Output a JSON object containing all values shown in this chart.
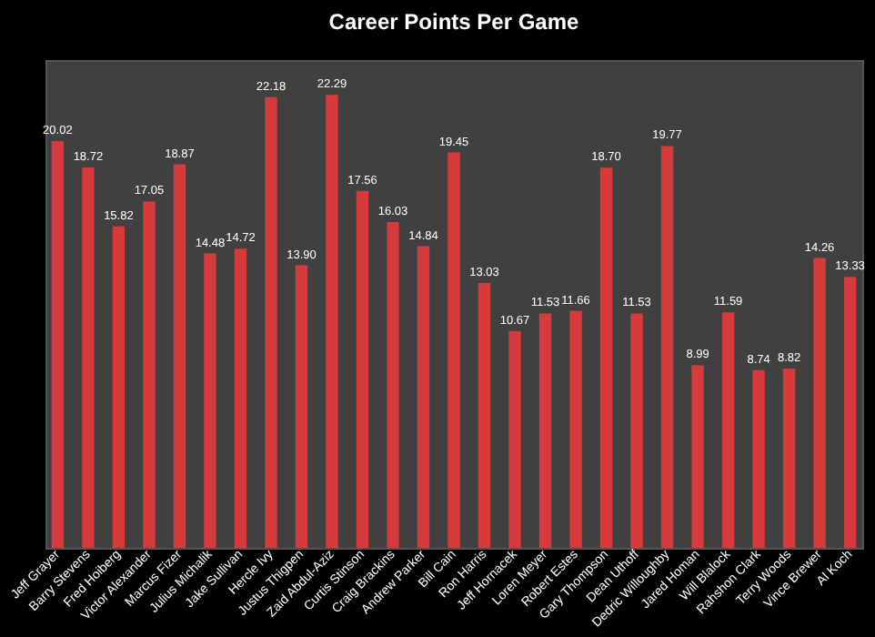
{
  "chart_data": {
    "type": "bar",
    "title": "Career Points Per Game",
    "categories": [
      "Jeff Grayer",
      "Barry Stevens",
      "Fred Hoiberg",
      "Victor Alexander",
      "Marcus Fizer",
      "Julius Michalik",
      "Jake Sullivan",
      "Hercle Ivy",
      "Justus Thigpen",
      "Zaid Abdul-Aziz",
      "Curtis Stinson",
      "Craig Brackins",
      "Andrew Parker",
      "Bill Cain",
      "Ron Harris",
      "Jeff Hornacek",
      "Loren Meyer",
      "Robert Estes",
      "Gary Thompson",
      "Dean Uthoff",
      "Dedric Willoughby",
      "Jared Homan",
      "Will Blalock",
      "Rahshon Clark",
      "Terry Woods",
      "Vince Brewer",
      "Al Koch"
    ],
    "values": [
      20.02,
      18.72,
      15.82,
      17.05,
      18.87,
      14.48,
      14.72,
      22.18,
      13.9,
      22.29,
      17.56,
      16.03,
      14.84,
      19.45,
      13.03,
      10.67,
      11.53,
      11.66,
      18.7,
      11.53,
      19.77,
      8.99,
      11.59,
      8.74,
      8.82,
      14.26,
      13.33
    ],
    "value_labels": [
      "20.02",
      "18.72",
      "15.82",
      "17.05",
      "18.87",
      "14.48",
      "14.72",
      "22.18",
      "13.90",
      "22.29",
      "17.56",
      "16.03",
      "14.84",
      "19.45",
      "13.03",
      "10.67",
      "11.53",
      "11.66",
      "18.70",
      "11.53",
      "19.77",
      "8.99",
      "11.59",
      "8.74",
      "8.82",
      "14.26",
      "13.33"
    ],
    "color": "#d63a3a"
  }
}
